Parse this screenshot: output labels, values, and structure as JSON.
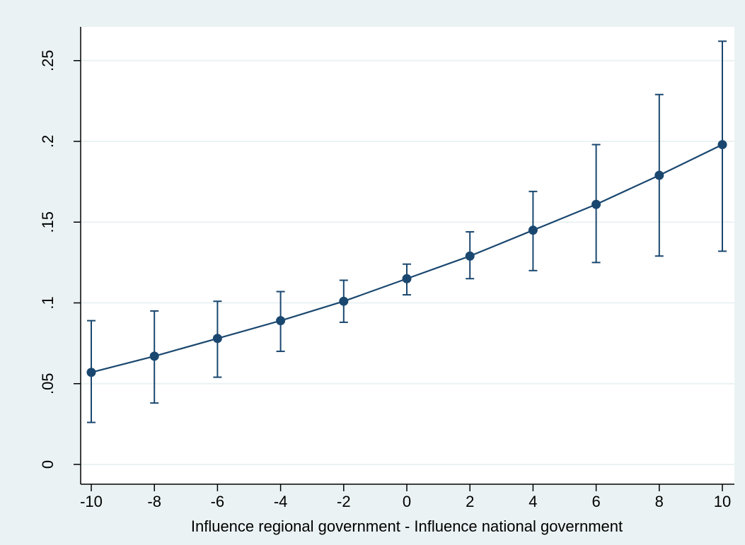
{
  "chart_data": {
    "type": "line",
    "title": "",
    "xlabel": "Influence regional government - Influence national government",
    "ylabel": "",
    "xlim": [
      -10,
      10
    ],
    "ylim": [
      0,
      0.27
    ],
    "x_ticks": [
      -10,
      -8,
      -6,
      -4,
      -2,
      0,
      2,
      4,
      6,
      8,
      10
    ],
    "x_tick_labels": [
      "-10",
      "-8",
      "-6",
      "-4",
      "-2",
      "0",
      "2",
      "4",
      "6",
      "8",
      "10"
    ],
    "y_ticks": [
      0,
      0.05,
      0.1,
      0.15,
      0.2,
      0.25
    ],
    "y_tick_labels": [
      "0",
      ".05",
      ".1",
      ".15",
      ".2",
      ".25"
    ],
    "grid": true,
    "legend": "none",
    "series": [
      {
        "x": [
          -10,
          -8,
          -6,
          -4,
          -2,
          0,
          2,
          4,
          6,
          8,
          10
        ],
        "values": [
          0.057,
          0.067,
          0.078,
          0.089,
          0.101,
          0.115,
          0.129,
          0.145,
          0.161,
          0.179,
          0.198
        ],
        "ci_lower": [
          0.026,
          0.038,
          0.054,
          0.07,
          0.088,
          0.105,
          0.115,
          0.12,
          0.125,
          0.129,
          0.132
        ],
        "ci_upper": [
          0.089,
          0.095,
          0.101,
          0.107,
          0.114,
          0.124,
          0.144,
          0.169,
          0.198,
          0.229,
          0.262
        ]
      }
    ],
    "colors": {
      "page_background": "#eaf2f3",
      "plot_background": "#ffffff",
      "series": "#1a476f",
      "grid": "#eaf2f3",
      "axis": "#000000"
    }
  }
}
